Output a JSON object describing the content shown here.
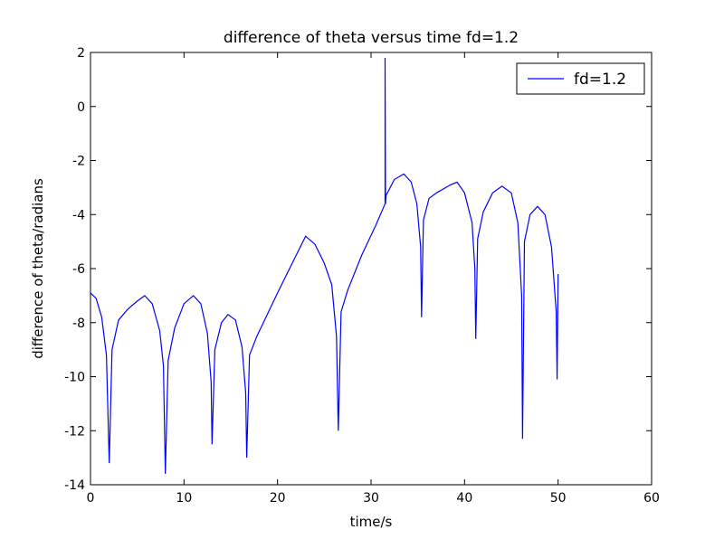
{
  "chart_data": {
    "type": "line",
    "title": "difference of theta versus time  fd=1.2",
    "xlabel": "time/s",
    "ylabel": "difference of theta/radians",
    "xlim": [
      0,
      60
    ],
    "xticks": [
      0,
      10,
      20,
      30,
      40,
      50,
      60
    ],
    "ylim": [
      -14,
      2
    ],
    "yticks": [
      -14,
      -12,
      -10,
      -8,
      -6,
      -4,
      -2,
      0,
      2
    ],
    "legend": "upper right",
    "series": [
      {
        "name": "fd=1.2",
        "color": "#0000ff",
        "x": [
          0,
          0.6,
          1.2,
          1.7,
          2.0,
          2.3,
          3.0,
          4.0,
          5.0,
          5.8,
          6.6,
          7.4,
          7.8,
          8.0,
          8.3,
          9.0,
          10.0,
          11.0,
          11.8,
          12.5,
          12.9,
          13.0,
          13.3,
          14.0,
          14.7,
          15.5,
          16.2,
          16.6,
          16.7,
          17.0,
          17.8,
          20.0,
          22.0,
          23.0,
          24.0,
          25.0,
          25.8,
          26.3,
          26.5,
          26.8,
          27.5,
          29.0,
          30.5,
          31.5,
          31.5,
          31.55,
          31.6,
          32.5,
          33.5,
          34.3,
          34.9,
          35.3,
          35.4,
          35.6,
          36.2,
          37.0,
          38.5,
          39.2,
          40.0,
          40.8,
          41.1,
          41.2,
          41.4,
          42.0,
          43.0,
          44.0,
          45.0,
          45.7,
          46.1,
          46.2,
          46.4,
          47.0,
          47.8,
          48.6,
          49.3,
          49.8,
          49.9,
          50.0
        ],
        "values": [
          -6.9,
          -7.1,
          -7.8,
          -9.2,
          -13.2,
          -9.0,
          -7.9,
          -7.5,
          -7.2,
          -7.0,
          -7.3,
          -8.3,
          -9.6,
          -13.6,
          -9.4,
          -8.2,
          -7.3,
          -7.0,
          -7.3,
          -8.4,
          -10.2,
          -12.5,
          -9.0,
          -8.0,
          -7.7,
          -7.9,
          -8.9,
          -10.6,
          -13.0,
          -9.2,
          -8.5,
          -6.9,
          -5.5,
          -4.8,
          -5.1,
          -5.8,
          -6.6,
          -8.5,
          -12.0,
          -7.6,
          -6.8,
          -5.5,
          -4.4,
          -3.6,
          1.8,
          -3.6,
          -3.3,
          -2.7,
          -2.5,
          -2.8,
          -3.6,
          -5.2,
          -7.8,
          -4.2,
          -3.4,
          -3.2,
          -2.9,
          -2.8,
          -3.2,
          -4.3,
          -6.0,
          -8.6,
          -4.9,
          -3.9,
          -3.2,
          -2.95,
          -3.2,
          -4.3,
          -7.0,
          -12.3,
          -5.0,
          -4.0,
          -3.7,
          -4.0,
          -5.2,
          -7.6,
          -10.1,
          -6.2
        ]
      }
    ]
  }
}
